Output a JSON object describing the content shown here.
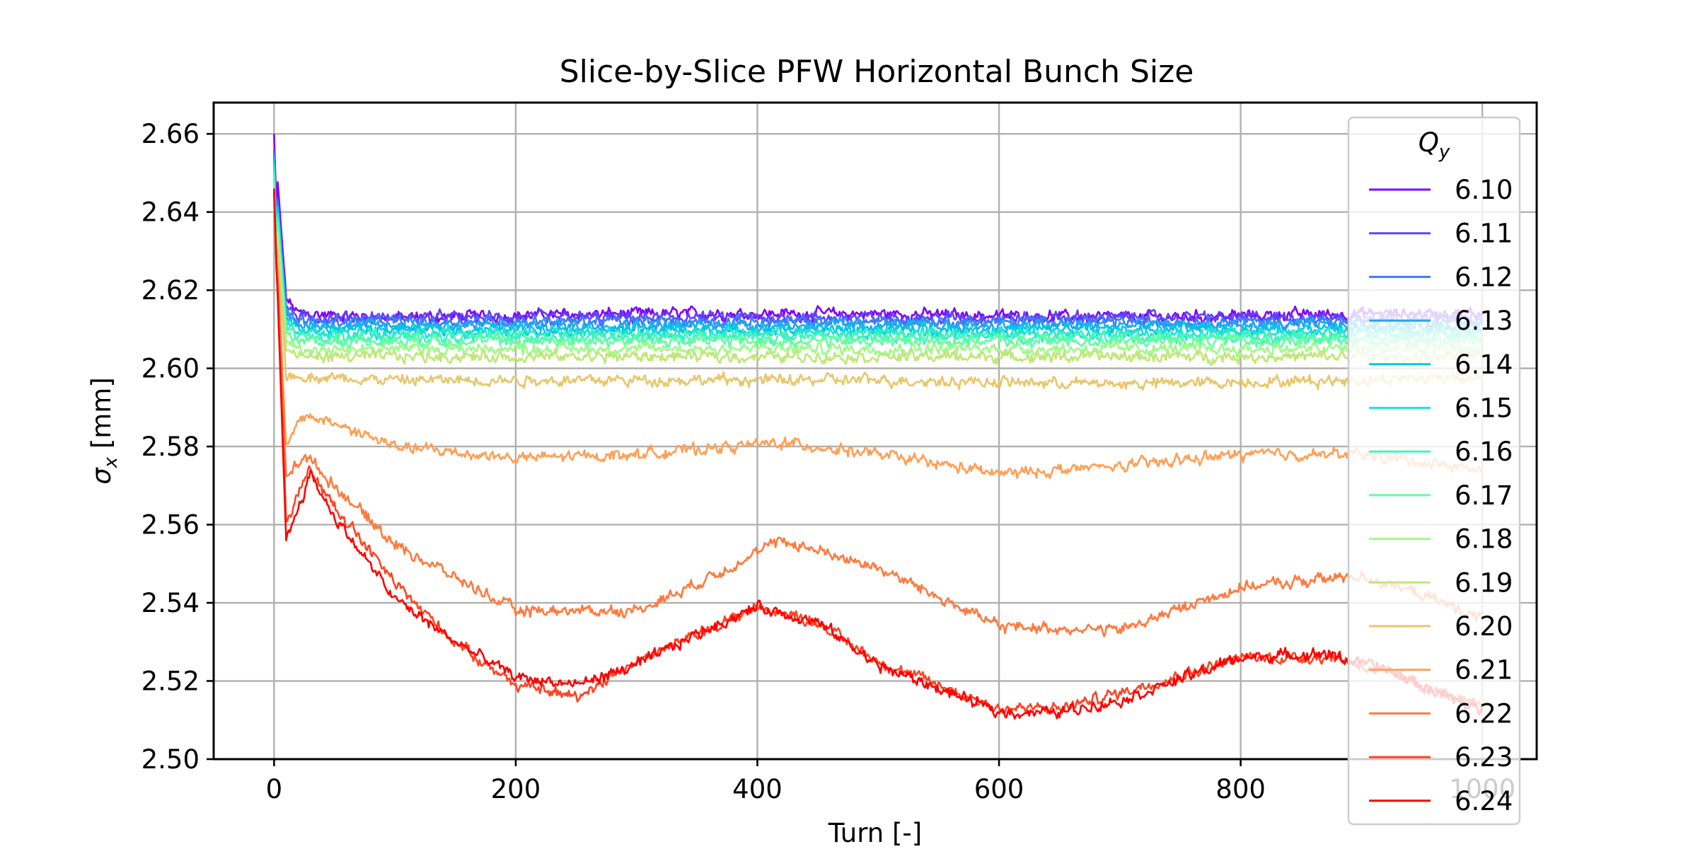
{
  "chart_data": {
    "type": "line",
    "title": "Slice-by-Slice PFW Horizontal Bunch Size",
    "xlabel": "Turn [-]",
    "ylabel": "σx [mm]",
    "xlim": [
      -50,
      1045
    ],
    "ylim": [
      2.5,
      2.668
    ],
    "x_ticks": [
      0,
      200,
      400,
      600,
      800,
      1000
    ],
    "x_tick_labels": [
      "0",
      "200",
      "400",
      "600",
      "800",
      "1000"
    ],
    "y_ticks": [
      2.5,
      2.52,
      2.54,
      2.56,
      2.58,
      2.6,
      2.62,
      2.64,
      2.66
    ],
    "y_tick_labels": [
      "2.50",
      "2.52",
      "2.54",
      "2.56",
      "2.58",
      "2.60",
      "2.62",
      "2.64",
      "2.66"
    ],
    "grid": true,
    "legend": {
      "title": "Qy",
      "position": "right, overlapping plot edge"
    },
    "series": [
      {
        "name": "6.10",
        "color": "#8000ff",
        "start": 2.66,
        "min": 2.612,
        "points": [
          [
            0,
            2.66
          ],
          [
            10,
            2.618
          ],
          [
            20,
            2.614
          ],
          [
            100,
            2.613
          ],
          [
            300,
            2.614
          ],
          [
            500,
            2.614
          ],
          [
            700,
            2.613
          ],
          [
            900,
            2.614
          ],
          [
            1000,
            2.614
          ]
        ]
      },
      {
        "name": "6.11",
        "color": "#6042fd",
        "start": 2.656,
        "min": 2.612,
        "points": [
          [
            0,
            2.656
          ],
          [
            10,
            2.616
          ],
          [
            20,
            2.613
          ],
          [
            100,
            2.613
          ],
          [
            300,
            2.613
          ],
          [
            500,
            2.613
          ],
          [
            700,
            2.613
          ],
          [
            900,
            2.613
          ],
          [
            1000,
            2.613
          ]
        ]
      },
      {
        "name": "6.12",
        "color": "#3f7af8",
        "start": 2.655,
        "min": 2.611,
        "points": [
          [
            0,
            2.655
          ],
          [
            10,
            2.615
          ],
          [
            20,
            2.612
          ],
          [
            100,
            2.612
          ],
          [
            300,
            2.612
          ],
          [
            500,
            2.612
          ],
          [
            700,
            2.612
          ],
          [
            900,
            2.612
          ],
          [
            1000,
            2.612
          ]
        ]
      },
      {
        "name": "6.13",
        "color": "#1fa8ef",
        "start": 2.654,
        "min": 2.61,
        "points": [
          [
            0,
            2.654
          ],
          [
            10,
            2.614
          ],
          [
            20,
            2.611
          ],
          [
            100,
            2.611
          ],
          [
            300,
            2.611
          ],
          [
            500,
            2.611
          ],
          [
            700,
            2.611
          ],
          [
            900,
            2.611
          ],
          [
            1000,
            2.611
          ]
        ]
      },
      {
        "name": "6.14",
        "color": "#00c8e2",
        "start": 2.653,
        "min": 2.609,
        "points": [
          [
            0,
            2.653
          ],
          [
            10,
            2.613
          ],
          [
            20,
            2.61
          ],
          [
            100,
            2.61
          ],
          [
            300,
            2.61
          ],
          [
            500,
            2.61
          ],
          [
            700,
            2.61
          ],
          [
            900,
            2.61
          ],
          [
            1000,
            2.61
          ]
        ]
      },
      {
        "name": "6.15",
        "color": "#21e5d1",
        "start": 2.652,
        "min": 2.608,
        "points": [
          [
            0,
            2.652
          ],
          [
            10,
            2.612
          ],
          [
            20,
            2.609
          ],
          [
            100,
            2.609
          ],
          [
            300,
            2.609
          ],
          [
            500,
            2.609
          ],
          [
            700,
            2.609
          ],
          [
            900,
            2.609
          ],
          [
            1000,
            2.609
          ]
        ]
      },
      {
        "name": "6.16",
        "color": "#40f6bc",
        "start": 2.65,
        "min": 2.607,
        "points": [
          [
            0,
            2.65
          ],
          [
            10,
            2.611
          ],
          [
            20,
            2.608
          ],
          [
            100,
            2.608
          ],
          [
            300,
            2.608
          ],
          [
            500,
            2.608
          ],
          [
            700,
            2.608
          ],
          [
            900,
            2.608
          ],
          [
            1000,
            2.608
          ]
        ]
      },
      {
        "name": "6.17",
        "color": "#60fea4",
        "start": 2.648,
        "min": 2.606,
        "points": [
          [
            0,
            2.648
          ],
          [
            10,
            2.609
          ],
          [
            20,
            2.607
          ],
          [
            100,
            2.607
          ],
          [
            300,
            2.607
          ],
          [
            500,
            2.607
          ],
          [
            700,
            2.607
          ],
          [
            900,
            2.607
          ],
          [
            1000,
            2.607
          ]
        ]
      },
      {
        "name": "6.18",
        "color": "#9ffa8a",
        "start": 2.646,
        "min": 2.604,
        "points": [
          [
            0,
            2.646
          ],
          [
            10,
            2.607
          ],
          [
            20,
            2.605
          ],
          [
            100,
            2.605
          ],
          [
            300,
            2.605
          ],
          [
            500,
            2.605
          ],
          [
            700,
            2.605
          ],
          [
            900,
            2.605
          ],
          [
            1000,
            2.605
          ]
        ]
      },
      {
        "name": "6.19",
        "color": "#c0e777",
        "start": 2.645,
        "min": 2.601,
        "points": [
          [
            0,
            2.645
          ],
          [
            10,
            2.605
          ],
          [
            20,
            2.603
          ],
          [
            100,
            2.603
          ],
          [
            300,
            2.603
          ],
          [
            500,
            2.603
          ],
          [
            700,
            2.603
          ],
          [
            900,
            2.603
          ],
          [
            1000,
            2.603
          ]
        ]
      },
      {
        "name": "6.20",
        "color": "#e8c66b",
        "start": 2.645,
        "min": 2.592,
        "points": [
          [
            0,
            2.645
          ],
          [
            10,
            2.598
          ],
          [
            20,
            2.598
          ],
          [
            100,
            2.597
          ],
          [
            300,
            2.597
          ],
          [
            500,
            2.597
          ],
          [
            700,
            2.596
          ],
          [
            900,
            2.597
          ],
          [
            1000,
            2.598
          ]
        ]
      },
      {
        "name": "6.21",
        "color": "#ff9f55",
        "start": 2.645,
        "min": 2.57,
        "points": [
          [
            0,
            2.645
          ],
          [
            10,
            2.58
          ],
          [
            25,
            2.588
          ],
          [
            50,
            2.586
          ],
          [
            100,
            2.58
          ],
          [
            200,
            2.577
          ],
          [
            300,
            2.578
          ],
          [
            420,
            2.581
          ],
          [
            500,
            2.578
          ],
          [
            600,
            2.573
          ],
          [
            700,
            2.575
          ],
          [
            800,
            2.578
          ],
          [
            900,
            2.578
          ],
          [
            1000,
            2.574
          ]
        ]
      },
      {
        "name": "6.22",
        "color": "#ff7a3f",
        "start": 2.645,
        "min": 2.53,
        "points": [
          [
            0,
            2.645
          ],
          [
            10,
            2.572
          ],
          [
            25,
            2.578
          ],
          [
            50,
            2.57
          ],
          [
            100,
            2.555
          ],
          [
            200,
            2.538
          ],
          [
            300,
            2.538
          ],
          [
            350,
            2.545
          ],
          [
            420,
            2.556
          ],
          [
            500,
            2.549
          ],
          [
            600,
            2.534
          ],
          [
            700,
            2.533
          ],
          [
            800,
            2.544
          ],
          [
            900,
            2.547
          ],
          [
            950,
            2.542
          ],
          [
            1000,
            2.536
          ]
        ]
      },
      {
        "name": "6.23",
        "color": "#ff4424",
        "start": 2.645,
        "min": 2.514,
        "points": [
          [
            0,
            2.645
          ],
          [
            10,
            2.56
          ],
          [
            30,
            2.574
          ],
          [
            50,
            2.565
          ],
          [
            100,
            2.545
          ],
          [
            150,
            2.53
          ],
          [
            200,
            2.519
          ],
          [
            250,
            2.516
          ],
          [
            300,
            2.525
          ],
          [
            400,
            2.539
          ],
          [
            450,
            2.535
          ],
          [
            500,
            2.525
          ],
          [
            600,
            2.513
          ],
          [
            650,
            2.513
          ],
          [
            700,
            2.517
          ],
          [
            800,
            2.526
          ],
          [
            880,
            2.526
          ],
          [
            920,
            2.522
          ],
          [
            1000,
            2.513
          ]
        ]
      },
      {
        "name": "6.24",
        "color": "#ff0000",
        "start": 2.646,
        "min": 2.51,
        "points": [
          [
            0,
            2.646
          ],
          [
            10,
            2.556
          ],
          [
            30,
            2.573
          ],
          [
            50,
            2.562
          ],
          [
            100,
            2.541
          ],
          [
            150,
            2.53
          ],
          [
            200,
            2.521
          ],
          [
            250,
            2.519
          ],
          [
            300,
            2.524
          ],
          [
            350,
            2.532
          ],
          [
            400,
            2.539
          ],
          [
            450,
            2.535
          ],
          [
            500,
            2.524
          ],
          [
            600,
            2.512
          ],
          [
            650,
            2.512
          ],
          [
            700,
            2.515
          ],
          [
            800,
            2.526
          ],
          [
            870,
            2.527
          ],
          [
            920,
            2.523
          ],
          [
            1000,
            2.512
          ]
        ]
      }
    ]
  }
}
